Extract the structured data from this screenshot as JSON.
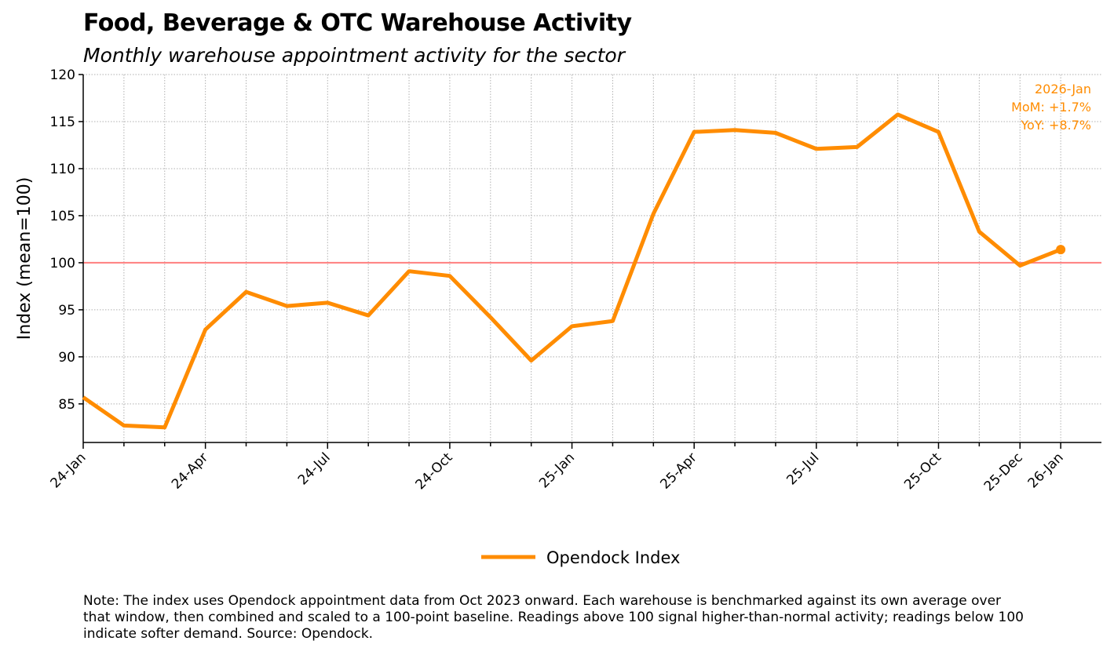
{
  "title": "Food, Beverage & OTC Warehouse Activity",
  "subtitle": "Monthly warehouse appointment activity for the sector",
  "note": "Note: The index uses Opendock appointment data from Oct 2023 onward. Each warehouse is benchmarked against its own average over that window, then combined and scaled to a 100-point baseline. Readings above 100 signal higher-than-normal activity; readings below 100 indicate softer demand. Source: Opendock.",
  "chart_data": {
    "type": "line",
    "title": "Food, Beverage & OTC Warehouse Activity",
    "subtitle": "Monthly warehouse appointment activity for the sector",
    "xlabel": "",
    "ylabel": "Index (mean=100)",
    "ylim": [
      80.9,
      120
    ],
    "yticks": [
      85,
      90,
      95,
      100,
      105,
      110,
      115,
      120
    ],
    "x": [
      "2024-01",
      "2024-02",
      "2024-03",
      "2024-04",
      "2024-05",
      "2024-06",
      "2024-07",
      "2024-08",
      "2024-09",
      "2024-10",
      "2024-11",
      "2024-12",
      "2025-01",
      "2025-02",
      "2025-03",
      "2025-04",
      "2025-05",
      "2025-06",
      "2025-07",
      "2025-08",
      "2025-09",
      "2025-10",
      "2025-11",
      "2025-12",
      "2026-01"
    ],
    "xticks": [
      {
        "i": 0,
        "label": "24-Jan"
      },
      {
        "i": 3,
        "label": "24-Apr"
      },
      {
        "i": 6,
        "label": "24-Jul"
      },
      {
        "i": 9,
        "label": "24-Oct"
      },
      {
        "i": 12,
        "label": "25-Jan"
      },
      {
        "i": 15,
        "label": "25-Apr"
      },
      {
        "i": 18,
        "label": "25-Jul"
      },
      {
        "i": 21,
        "label": "25-Oct"
      },
      {
        "i": 23,
        "label": "25-Dec"
      },
      {
        "i": 24,
        "label": "26-Jan"
      }
    ],
    "series": [
      {
        "name": "Opendock Index",
        "color": "#FF8C00",
        "values": [
          85.7,
          82.7,
          82.5,
          92.9,
          96.9,
          95.4,
          95.75,
          94.4,
          99.1,
          98.6,
          94.2,
          89.6,
          93.25,
          93.8,
          105.2,
          113.9,
          114.1,
          113.8,
          112.1,
          112.3,
          115.75,
          113.9,
          103.3,
          99.7,
          101.4
        ]
      }
    ],
    "baseline": {
      "value": 100,
      "color": "#FF7F7F"
    },
    "annotation": {
      "lines": [
        "2026-Jan",
        "MoM: +1.7%",
        "YoY: +8.7%"
      ],
      "color": "#FF8C00"
    },
    "legend": {
      "placement": "bottom-center",
      "entries": [
        "Opendock Index"
      ]
    },
    "grid": true
  }
}
